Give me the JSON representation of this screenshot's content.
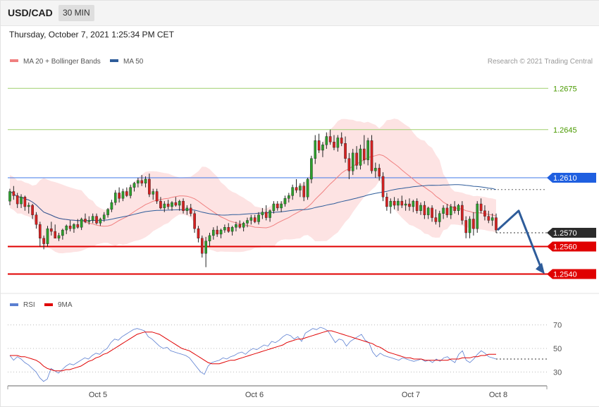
{
  "header": {
    "symbol": "USD/CAD",
    "timeframe": "30 MIN",
    "datetime": "Thursday, October 7, 2021 1:25:34 PM CET"
  },
  "legend_top": [
    {
      "label": "MA 20 + Bollinger Bands",
      "color": "#f08080"
    },
    {
      "label": "MA 50",
      "color": "#2e5c9a"
    }
  ],
  "legend_bottom": [
    {
      "label": "RSI",
      "color": "#5b7fd1"
    },
    {
      "label": "9MA",
      "color": "#e00000"
    }
  ],
  "credit": "Research © 2021 Trading Central",
  "chart_data": [
    {
      "type": "candlestick",
      "title": "",
      "x_ticks": [
        "Oct 5",
        "Oct 6",
        "Oct 7",
        "Oct 8"
      ],
      "price_labels": [
        {
          "text": "1.2675",
          "value": 1.2675,
          "kind": "resistance",
          "color": "#4a9a00",
          "line": "#9fcf6f"
        },
        {
          "text": "1.2645",
          "value": 1.2645,
          "kind": "resistance",
          "color": "#4a9a00",
          "line": "#9fcf6f"
        },
        {
          "text": "1.2610",
          "value": 1.261,
          "kind": "pivot",
          "color": "#1f5fe0",
          "line": "#3f78e8"
        },
        {
          "text": "1.2570",
          "value": 1.257,
          "kind": "last",
          "color": "#2b2b2b",
          "line": "#555555"
        },
        {
          "text": "1.2560",
          "value": 1.256,
          "kind": "support",
          "color": "#e00000",
          "line": "#e00000"
        },
        {
          "text": "1.2540",
          "value": 1.254,
          "kind": "support",
          "color": "#e00000",
          "line": "#e00000"
        }
      ],
      "ylim": [
        1.253,
        1.269
      ],
      "forecast": [
        1.2572,
        1.2586,
        1.254
      ],
      "candles": [
        [
          1.2593,
          1.2602,
          1.259,
          1.26
        ],
        [
          1.26,
          1.2604,
          1.2594,
          1.2597
        ],
        [
          1.2597,
          1.2599,
          1.2588,
          1.2591
        ],
        [
          1.2591,
          1.2598,
          1.2588,
          1.2596
        ],
        [
          1.2596,
          1.2597,
          1.2586,
          1.2589
        ],
        [
          1.2589,
          1.2592,
          1.2584,
          1.259
        ],
        [
          1.259,
          1.2591,
          1.258,
          1.2583
        ],
        [
          1.2583,
          1.2585,
          1.2573,
          1.2576
        ],
        [
          1.2576,
          1.2578,
          1.256,
          1.2566
        ],
        [
          1.2566,
          1.2568,
          1.2558,
          1.2562
        ],
        [
          1.2562,
          1.2575,
          1.256,
          1.2573
        ],
        [
          1.2573,
          1.2578,
          1.2568,
          1.2571
        ],
        [
          1.2571,
          1.2576,
          1.2566,
          1.2566
        ],
        [
          1.2566,
          1.257,
          1.2564,
          1.2568
        ],
        [
          1.2568,
          1.2573,
          1.2565,
          1.2572
        ],
        [
          1.2572,
          1.2576,
          1.2569,
          1.2575
        ],
        [
          1.2575,
          1.2579,
          1.2571,
          1.2573
        ],
        [
          1.2573,
          1.2577,
          1.257,
          1.2576
        ],
        [
          1.2576,
          1.258,
          1.2573,
          1.2574
        ],
        [
          1.2574,
          1.2581,
          1.2572,
          1.258
        ],
        [
          1.258,
          1.2584,
          1.2577,
          1.2578
        ],
        [
          1.2578,
          1.2582,
          1.2576,
          1.2579
        ],
        [
          1.2579,
          1.2584,
          1.2577,
          1.2582
        ],
        [
          1.2582,
          1.2584,
          1.2576,
          1.2577
        ],
        [
          1.2577,
          1.2581,
          1.2575,
          1.258
        ],
        [
          1.258,
          1.2585,
          1.2578,
          1.2583
        ],
        [
          1.2583,
          1.2588,
          1.2581,
          1.2587
        ],
        [
          1.2587,
          1.2594,
          1.2585,
          1.2592
        ],
        [
          1.2592,
          1.2601,
          1.259,
          1.2599
        ],
        [
          1.2599,
          1.2603,
          1.2592,
          1.2595
        ],
        [
          1.2595,
          1.2602,
          1.2593,
          1.26
        ],
        [
          1.26,
          1.2603,
          1.2596,
          1.2597
        ],
        [
          1.2597,
          1.2605,
          1.2595,
          1.2603
        ],
        [
          1.2603,
          1.2607,
          1.26,
          1.2606
        ],
        [
          1.2606,
          1.261,
          1.2603,
          1.2608
        ],
        [
          1.2608,
          1.2612,
          1.2604,
          1.2606
        ],
        [
          1.2606,
          1.2611,
          1.2603,
          1.2609
        ],
        [
          1.2609,
          1.2613,
          1.2596,
          1.2598
        ],
        [
          1.2598,
          1.2602,
          1.2594,
          1.26
        ],
        [
          1.26,
          1.2602,
          1.2591,
          1.2593
        ],
        [
          1.2593,
          1.2596,
          1.2587,
          1.2588
        ],
        [
          1.2588,
          1.2593,
          1.2585,
          1.2591
        ],
        [
          1.2591,
          1.2594,
          1.2587,
          1.2589
        ],
        [
          1.2589,
          1.2593,
          1.2586,
          1.2592
        ],
        [
          1.2592,
          1.2596,
          1.2589,
          1.259
        ],
        [
          1.259,
          1.2594,
          1.2586,
          1.2593
        ],
        [
          1.2593,
          1.2595,
          1.2584,
          1.2586
        ],
        [
          1.2586,
          1.259,
          1.2583,
          1.2588
        ],
        [
          1.2588,
          1.2591,
          1.2582,
          1.2584
        ],
        [
          1.2584,
          1.2586,
          1.257,
          1.2573
        ],
        [
          1.2573,
          1.2575,
          1.2563,
          1.2566
        ],
        [
          1.2566,
          1.2568,
          1.2552,
          1.2555
        ],
        [
          1.2555,
          1.2567,
          1.2545,
          1.2564
        ],
        [
          1.2564,
          1.257,
          1.256,
          1.2568
        ],
        [
          1.2568,
          1.2574,
          1.2565,
          1.2572
        ],
        [
          1.2572,
          1.2575,
          1.2567,
          1.2569
        ],
        [
          1.2569,
          1.2573,
          1.2566,
          1.2572
        ],
        [
          1.2572,
          1.2576,
          1.257,
          1.2574
        ],
        [
          1.2574,
          1.2577,
          1.257,
          1.2571
        ],
        [
          1.2571,
          1.2575,
          1.2568,
          1.2574
        ],
        [
          1.2574,
          1.2578,
          1.2571,
          1.2576
        ],
        [
          1.2576,
          1.2579,
          1.2573,
          1.2574
        ],
        [
          1.2574,
          1.2578,
          1.2571,
          1.2577
        ],
        [
          1.2577,
          1.2581,
          1.2574,
          1.2579
        ],
        [
          1.2579,
          1.2583,
          1.2576,
          1.2581
        ],
        [
          1.2581,
          1.2583,
          1.2577,
          1.2578
        ],
        [
          1.2578,
          1.2585,
          1.2576,
          1.2583
        ],
        [
          1.2583,
          1.2588,
          1.258,
          1.2585
        ],
        [
          1.2585,
          1.259,
          1.2579,
          1.2581
        ],
        [
          1.2581,
          1.2587,
          1.2578,
          1.2586
        ],
        [
          1.2586,
          1.2593,
          1.2584,
          1.2591
        ],
        [
          1.2591,
          1.2593,
          1.2586,
          1.2588
        ],
        [
          1.2588,
          1.2593,
          1.2585,
          1.2591
        ],
        [
          1.2591,
          1.2597,
          1.2589,
          1.2595
        ],
        [
          1.2595,
          1.2599,
          1.2592,
          1.2597
        ],
        [
          1.2597,
          1.2605,
          1.2594,
          1.2603
        ],
        [
          1.2603,
          1.2609,
          1.2599,
          1.2601
        ],
        [
          1.2601,
          1.2606,
          1.2596,
          1.2604
        ],
        [
          1.2604,
          1.2607,
          1.2593,
          1.2596
        ],
        [
          1.2596,
          1.261,
          1.2594,
          1.2609
        ],
        [
          1.2609,
          1.2626,
          1.2606,
          1.2624
        ],
        [
          1.2624,
          1.2641,
          1.262,
          1.2637
        ],
        [
          1.2637,
          1.2642,
          1.2628,
          1.263
        ],
        [
          1.263,
          1.2636,
          1.2625,
          1.2634
        ],
        [
          1.2634,
          1.2643,
          1.2631,
          1.264
        ],
        [
          1.264,
          1.2645,
          1.2634,
          1.2636
        ],
        [
          1.2636,
          1.2641,
          1.263,
          1.2632
        ],
        [
          1.2632,
          1.2641,
          1.2629,
          1.2639
        ],
        [
          1.2639,
          1.2643,
          1.2633,
          1.2635
        ],
        [
          1.2635,
          1.264,
          1.2621,
          1.2624
        ],
        [
          1.2624,
          1.2628,
          1.2609,
          1.2615
        ],
        [
          1.2615,
          1.2631,
          1.2612,
          1.2628
        ],
        [
          1.2628,
          1.2633,
          1.2616,
          1.2619
        ],
        [
          1.2619,
          1.2634,
          1.2616,
          1.2631
        ],
        [
          1.2631,
          1.2641,
          1.262,
          1.2623
        ],
        [
          1.2623,
          1.2639,
          1.2619,
          1.2637
        ],
        [
          1.2637,
          1.2641,
          1.2613,
          1.2615
        ],
        [
          1.2615,
          1.2621,
          1.261,
          1.2617
        ],
        [
          1.2617,
          1.262,
          1.2608,
          1.2611
        ],
        [
          1.2611,
          1.2614,
          1.2593,
          1.2596
        ],
        [
          1.2596,
          1.2599,
          1.2586,
          1.2589
        ],
        [
          1.2589,
          1.2595,
          1.2584,
          1.2593
        ],
        [
          1.2593,
          1.2596,
          1.2587,
          1.259
        ],
        [
          1.259,
          1.2595,
          1.2586,
          1.2593
        ],
        [
          1.2593,
          1.2597,
          1.2588,
          1.259
        ],
        [
          1.259,
          1.2594,
          1.2586,
          1.2591
        ],
        [
          1.2591,
          1.2595,
          1.2586,
          1.2589
        ],
        [
          1.2589,
          1.2594,
          1.2585,
          1.2593
        ],
        [
          1.2593,
          1.2595,
          1.2584,
          1.2586
        ],
        [
          1.2586,
          1.2592,
          1.2583,
          1.259
        ],
        [
          1.259,
          1.2593,
          1.258,
          1.2583
        ],
        [
          1.2583,
          1.2589,
          1.258,
          1.2588
        ],
        [
          1.2588,
          1.259,
          1.2578,
          1.2581
        ],
        [
          1.2581,
          1.2587,
          1.2576,
          1.2578
        ],
        [
          1.2578,
          1.2586,
          1.2574,
          1.2584
        ],
        [
          1.2584,
          1.259,
          1.258,
          1.2588
        ],
        [
          1.2588,
          1.2591,
          1.2581,
          1.2583
        ],
        [
          1.2583,
          1.2591,
          1.258,
          1.2589
        ],
        [
          1.2589,
          1.2593,
          1.2584,
          1.2586
        ],
        [
          1.2586,
          1.2591,
          1.2583,
          1.259
        ],
        [
          1.259,
          1.2593,
          1.2576,
          1.2579
        ],
        [
          1.2579,
          1.2582,
          1.2566,
          1.257
        ],
        [
          1.257,
          1.2582,
          1.2566,
          1.258
        ],
        [
          1.258,
          1.2585,
          1.2568,
          1.2573
        ],
        [
          1.2573,
          1.2593,
          1.257,
          1.2591
        ],
        [
          1.2591,
          1.2595,
          1.2584,
          1.2586
        ],
        [
          1.2586,
          1.259,
          1.2579,
          1.2582
        ],
        [
          1.2582,
          1.2586,
          1.2577,
          1.2579
        ],
        [
          1.2579,
          1.2584,
          1.2575,
          1.2581
        ],
        [
          1.2581,
          1.2584,
          1.257,
          1.2572
        ]
      ]
    },
    {
      "type": "line",
      "title": "",
      "ylim": [
        20,
        80
      ],
      "y_ticks": [
        30,
        50,
        70
      ],
      "series": [
        {
          "name": "RSI",
          "color": "#5b7fd1",
          "values": [
            44,
            40,
            43,
            41,
            38,
            36,
            33,
            30,
            25,
            22,
            24,
            33,
            31,
            29,
            32,
            35,
            37,
            36,
            38,
            40,
            42,
            41,
            44,
            46,
            45,
            48,
            50,
            55,
            58,
            57,
            60,
            62,
            64,
            66,
            67,
            66,
            65,
            60,
            58,
            55,
            52,
            50,
            51,
            48,
            47,
            46,
            45,
            44,
            42,
            38,
            34,
            30,
            28,
            35,
            38,
            39,
            40,
            42,
            41,
            43,
            44,
            46,
            47,
            45,
            48,
            50,
            49,
            51,
            53,
            52,
            56,
            55,
            57,
            60,
            62,
            61,
            58,
            60,
            56,
            63,
            65,
            67,
            66,
            68,
            67,
            65,
            60,
            55,
            58,
            57,
            52,
            56,
            58,
            60,
            62,
            57,
            55,
            47,
            43,
            46,
            44,
            43,
            42,
            41,
            40,
            42,
            41,
            40,
            39,
            40,
            41,
            39,
            40,
            38,
            41,
            39,
            42,
            43,
            40,
            38,
            45,
            48,
            40,
            38,
            41,
            45,
            48,
            46,
            43,
            42,
            41
          ]
        },
        {
          "name": "9MA",
          "color": "#e00000",
          "values": [
            44,
            44,
            44,
            43,
            43,
            42,
            41,
            40,
            38,
            35,
            33,
            32,
            31,
            31,
            31,
            32,
            32,
            33,
            34,
            35,
            37,
            39,
            40,
            42,
            43,
            45,
            46,
            48,
            50,
            52,
            54,
            56,
            58,
            60,
            62,
            63,
            64,
            64,
            64,
            63,
            62,
            60,
            58,
            56,
            54,
            52,
            50,
            49,
            48,
            46,
            44,
            42,
            40,
            38,
            37,
            37,
            37,
            38,
            39,
            40,
            40,
            41,
            42,
            43,
            44,
            45,
            46,
            47,
            48,
            49,
            50,
            51,
            52,
            53,
            55,
            56,
            57,
            58,
            58,
            59,
            60,
            61,
            62,
            63,
            64,
            65,
            65,
            64,
            63,
            62,
            61,
            60,
            59,
            58,
            57,
            56,
            55,
            54,
            52,
            51,
            49,
            47,
            46,
            45,
            44,
            43,
            42,
            42,
            41,
            41,
            41,
            40,
            40,
            40,
            40,
            40,
            40,
            40,
            41,
            41,
            41,
            42,
            42,
            42,
            43,
            43,
            44,
            44,
            45,
            45,
            45
          ]
        }
      ]
    }
  ]
}
